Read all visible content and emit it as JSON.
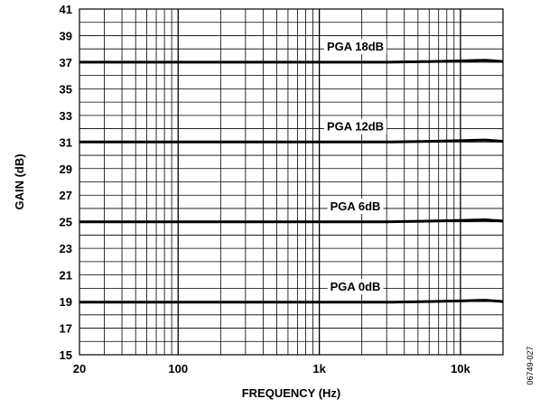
{
  "figure_id": "06749-027",
  "chart_data": {
    "type": "line",
    "xlabel": "FREQUENCY (Hz)",
    "ylabel": "GAIN (dB)",
    "xscale": "log",
    "xlim": [
      20,
      20000
    ],
    "ylim": [
      15,
      41
    ],
    "xticks": [
      20,
      100,
      1000,
      10000
    ],
    "xtick_labels": [
      "20",
      "100",
      "1k",
      "10k"
    ],
    "yticks": [
      15,
      17,
      19,
      21,
      23,
      25,
      27,
      29,
      31,
      33,
      35,
      37,
      39,
      41
    ],
    "ytick_labels": [
      "15",
      "17",
      "19",
      "21",
      "23",
      "25",
      "27",
      "29",
      "31",
      "33",
      "35",
      "37",
      "39",
      "41"
    ],
    "grid": true,
    "series": [
      {
        "name": "PGA 18dB",
        "x": [
          20,
          100,
          1000,
          3000,
          6000,
          10000,
          15000,
          20000
        ],
        "y": [
          37.0,
          37.0,
          37.0,
          37.0,
          37.05,
          37.1,
          37.15,
          37.05
        ]
      },
      {
        "name": "PGA 12dB",
        "x": [
          20,
          100,
          1000,
          3000,
          6000,
          10000,
          15000,
          20000
        ],
        "y": [
          31.0,
          31.0,
          31.0,
          31.0,
          31.05,
          31.1,
          31.15,
          31.05
        ]
      },
      {
        "name": "PGA 6dB",
        "x": [
          20,
          100,
          1000,
          3000,
          6000,
          10000,
          15000,
          20000
        ],
        "y": [
          25.0,
          25.0,
          25.0,
          25.0,
          25.05,
          25.1,
          25.15,
          25.05
        ]
      },
      {
        "name": "PGA 0dB",
        "x": [
          20,
          100,
          1000,
          3000,
          6000,
          10000,
          15000,
          20000
        ],
        "y": [
          18.95,
          18.95,
          18.95,
          18.95,
          19.0,
          19.05,
          19.1,
          19.0
        ]
      }
    ]
  }
}
